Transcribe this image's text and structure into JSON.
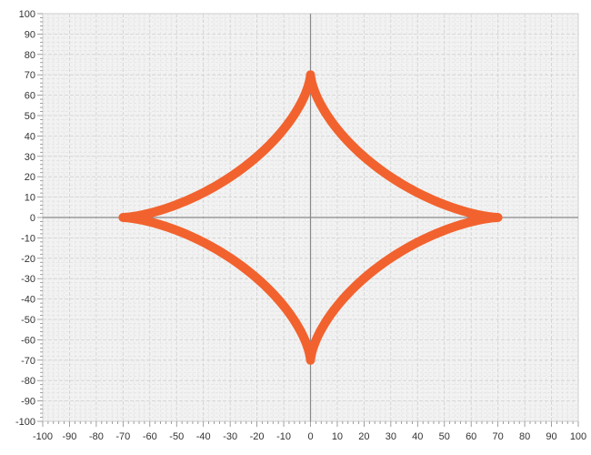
{
  "chart_data": {
    "type": "line",
    "title": "",
    "xlabel": "",
    "ylabel": "",
    "xlim": [
      -100,
      100
    ],
    "ylim": [
      -100,
      100
    ],
    "x_ticks": [
      -100,
      -90,
      -80,
      -70,
      -60,
      -50,
      -40,
      -30,
      -20,
      -10,
      0,
      10,
      20,
      30,
      40,
      50,
      60,
      70,
      80,
      90,
      100
    ],
    "y_ticks": [
      -100,
      -90,
      -80,
      -70,
      -60,
      -50,
      -40,
      -30,
      -20,
      -10,
      0,
      10,
      20,
      30,
      40,
      50,
      60,
      70,
      80,
      90,
      100
    ],
    "grid": true,
    "series": [
      {
        "curve": "astroid",
        "radius": 70,
        "center": [
          0,
          0
        ],
        "color": "#f2622e"
      }
    ]
  },
  "colors": {
    "plot_background": "#f2f2f2",
    "grid_major": "#d0d0d0",
    "grid_minor": "#e0e0e0",
    "axis_line": "#888888",
    "frame": "#cccccc"
  }
}
